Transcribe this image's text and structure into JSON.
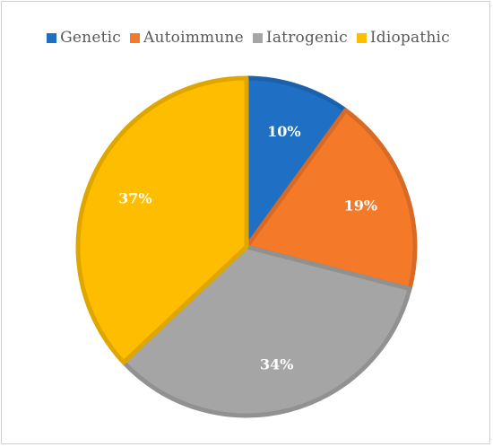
{
  "chart_data": {
    "type": "pie",
    "title": "",
    "legend_position": "top",
    "slices": [
      {
        "label": "Genetic",
        "value": 10,
        "display": "10%",
        "color": "#1F6FC5"
      },
      {
        "label": "Autoimmune",
        "value": 19,
        "display": "19%",
        "color": "#F47A2A"
      },
      {
        "label": "Iatrogenic",
        "value": 34,
        "display": "34%",
        "color": "#A5A5A5"
      },
      {
        "label": "Idiopathic",
        "value": 37,
        "display": "37%",
        "color": "#FFBD00"
      }
    ],
    "start_angle_deg": 0,
    "direction": "clockwise"
  }
}
